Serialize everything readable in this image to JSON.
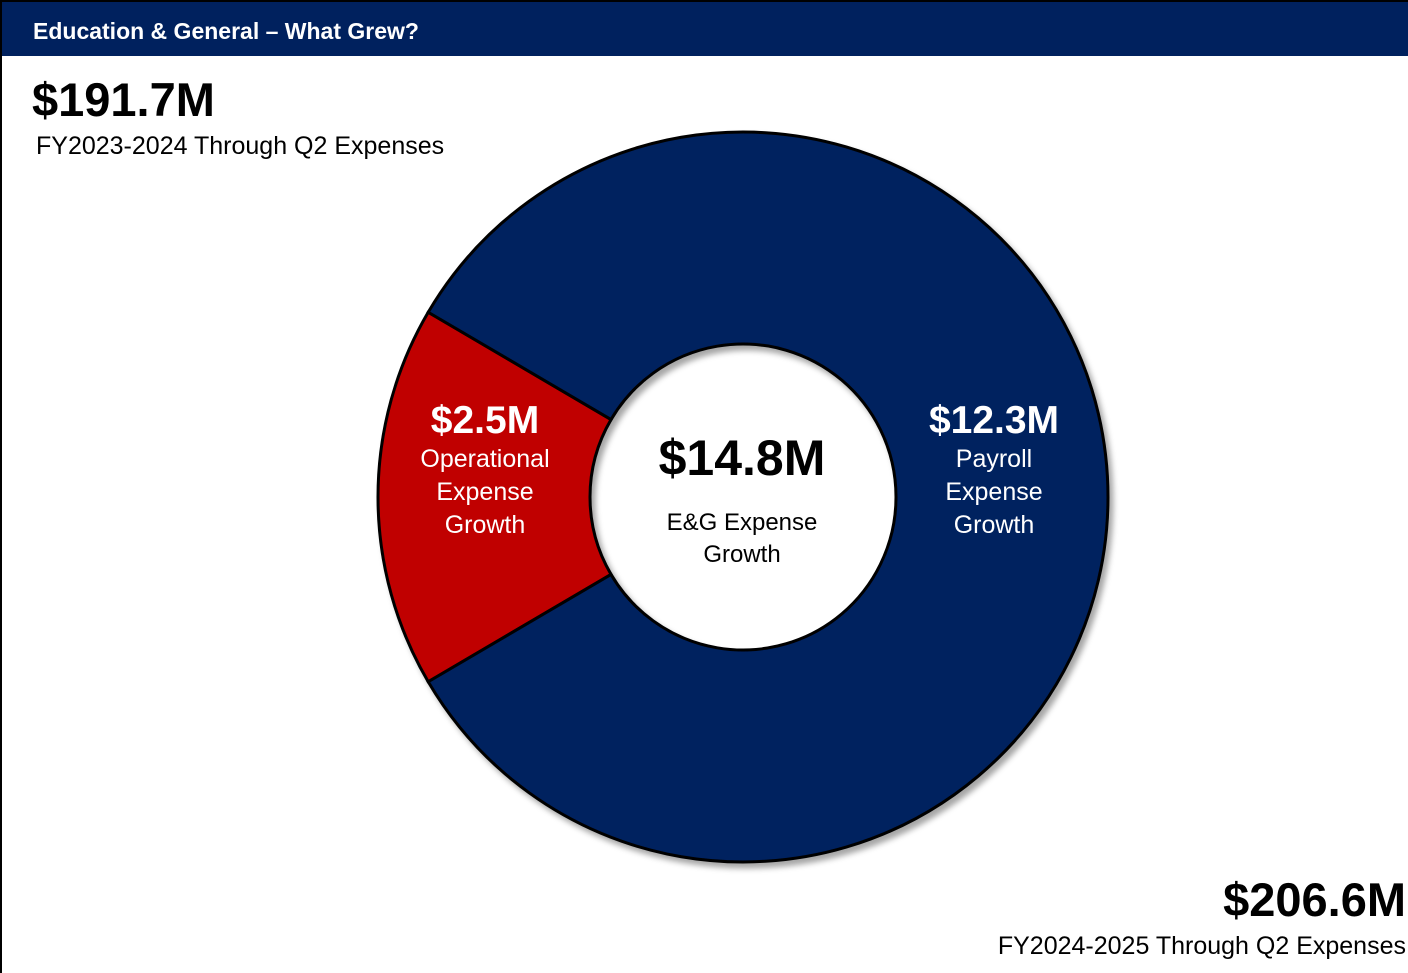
{
  "header": {
    "title": "Education & General – What Grew?"
  },
  "prior_total": {
    "value": "$191.7M",
    "caption": "FY2023-2024 Through Q2 Expenses"
  },
  "current_total": {
    "value": "$206.6M",
    "caption": "FY2024-2025 Through Q2 Expenses"
  },
  "colors": {
    "navy": "#00215E",
    "red": "#C00000",
    "white": "#FFFFFF",
    "black": "#000000"
  },
  "chart_data": {
    "type": "pie",
    "style": "donut",
    "title": "",
    "center": {
      "value": "$14.8M",
      "label": "E&G Expense Growth"
    },
    "slices": [
      {
        "value_label": "$2.5M",
        "label": "Operational Expense Growth",
        "value": 2.5,
        "color": "#C00000"
      },
      {
        "value_label": "$12.3M",
        "label": "Payroll Expense Growth",
        "value": 12.3,
        "color": "#00215E"
      }
    ]
  }
}
